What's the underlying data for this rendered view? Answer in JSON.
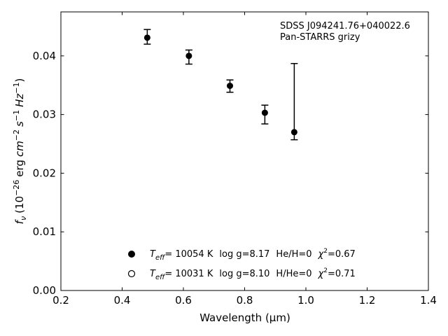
{
  "chart_data": {
    "type": "scatter",
    "title": "",
    "xlabel": "Wavelength (μm)",
    "ylabel_parts": {
      "f": "f",
      "nu": "ν",
      "open": "(10",
      "exp1": "−26",
      "erg": "erg",
      "cm": "cm",
      "exp2": "−2",
      "s": "s",
      "exp3": "−1",
      "hz": "Hz",
      "exp4": "−1",
      "close": ")"
    },
    "xlim": [
      0.2,
      1.4
    ],
    "ylim": [
      0.0,
      0.0475
    ],
    "xticks": [
      0.2,
      0.4,
      0.6,
      0.8,
      1.0,
      1.2,
      1.4
    ],
    "xtick_labels": [
      "0.2",
      "0.4",
      "0.6",
      "0.8",
      "1.0",
      "1.2",
      "1.4"
    ],
    "yticks": [
      0.0,
      0.01,
      0.02,
      0.03,
      0.04
    ],
    "ytick_labels": [
      "0.00",
      "0.01",
      "0.02",
      "0.03",
      "0.04"
    ],
    "grid": false,
    "annotation_lines": [
      "SDSS J094241.76+040022.6",
      "Pan-STARRS grizy"
    ],
    "series": [
      {
        "marker": "filled-circle",
        "points": [
          {
            "x": 0.482,
            "y": 0.0431,
            "ylow": 0.042,
            "yhigh": 0.0445
          },
          {
            "x": 0.618,
            "y": 0.04,
            "ylow": 0.0386,
            "yhigh": 0.041
          },
          {
            "x": 0.752,
            "y": 0.0349,
            "ylow": 0.0338,
            "yhigh": 0.0359
          },
          {
            "x": 0.866,
            "y": 0.0303,
            "ylow": 0.0284,
            "yhigh": 0.0316
          },
          {
            "x": 0.962,
            "y": 0.027,
            "ylow": 0.0257,
            "yhigh": 0.0387
          }
        ]
      }
    ],
    "legend": {
      "placement": "lower-center",
      "entries": [
        {
          "marker": "filled-circle",
          "t": "T",
          "eff": "eff",
          "teff": "= 10054 K",
          "logg": "log g=8.17",
          "comp": "He/H=0",
          "chi": "χ",
          "chi_sup": "2",
          "chi_val": "=0.67"
        },
        {
          "marker": "open-circle",
          "t": "T",
          "eff": "eff",
          "teff": "= 10031 K",
          "logg": "log g=8.10",
          "comp": "H/He=0",
          "chi": "χ",
          "chi_sup": "2",
          "chi_val": "=0.71"
        }
      ]
    }
  }
}
